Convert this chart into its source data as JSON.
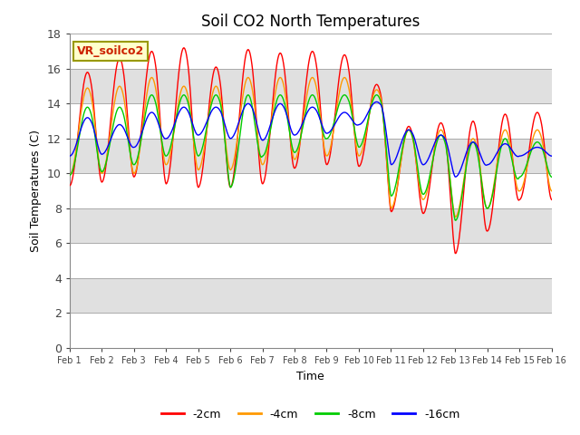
{
  "title": "Soil CO2 North Temperatures",
  "xlabel": "Time",
  "ylabel": "Soil Temperatures (C)",
  "ylim": [
    0,
    18
  ],
  "yticks": [
    0,
    2,
    4,
    6,
    8,
    10,
    12,
    14,
    16,
    18
  ],
  "annotation": "VR_soilco2",
  "series_order": [
    "-2cm",
    "-4cm",
    "-8cm",
    "-16cm"
  ],
  "series": {
    "-2cm": {
      "color": "#ff0000",
      "peaks": [
        15.8,
        16.6,
        17.0,
        17.2,
        16.1,
        17.1,
        16.9,
        17.0,
        16.8,
        15.1,
        12.7,
        12.9,
        13.0,
        13.4,
        13.5
      ],
      "troughs": [
        9.3,
        9.5,
        9.8,
        9.4,
        9.2,
        9.2,
        9.4,
        10.3,
        10.5,
        10.4,
        7.8,
        7.7,
        5.4,
        6.7,
        8.5
      ]
    },
    "-4cm": {
      "color": "#ff9900",
      "peaks": [
        14.9,
        15.0,
        15.5,
        15.0,
        15.0,
        15.5,
        15.5,
        15.5,
        15.5,
        14.8,
        12.5,
        12.5,
        12.0,
        12.5,
        12.5
      ],
      "troughs": [
        9.9,
        10.0,
        10.0,
        10.5,
        10.2,
        10.2,
        10.5,
        10.8,
        11.0,
        11.0,
        8.0,
        8.5,
        7.5,
        8.0,
        9.0
      ]
    },
    "-8cm": {
      "color": "#00cc00",
      "peaks": [
        13.8,
        13.8,
        14.5,
        14.5,
        14.5,
        14.5,
        14.5,
        14.5,
        14.5,
        14.5,
        12.5,
        12.2,
        11.8,
        12.0,
        11.8
      ],
      "troughs": [
        9.9,
        10.1,
        10.5,
        11.0,
        11.0,
        9.2,
        11.0,
        11.2,
        12.0,
        11.5,
        8.7,
        8.8,
        7.3,
        8.0,
        9.8
      ]
    },
    "-16cm": {
      "color": "#0000ff",
      "peaks": [
        13.2,
        12.8,
        13.5,
        13.8,
        13.8,
        14.0,
        14.0,
        13.8,
        13.5,
        14.1,
        12.5,
        12.2,
        11.8,
        11.7,
        11.5
      ],
      "troughs": [
        11.0,
        11.1,
        11.5,
        12.0,
        12.2,
        12.0,
        11.9,
        12.2,
        12.3,
        12.8,
        10.5,
        10.5,
        9.8,
        10.5,
        11.0
      ]
    }
  },
  "xtick_labels": [
    "Feb 1",
    "Feb 2",
    "Feb 3",
    "Feb 4",
    "Feb 5",
    "Feb 6",
    "Feb 7",
    "Feb 8",
    "Feb 9",
    "Feb 10",
    "Feb 11",
    "Feb 12",
    "Feb 13",
    "Feb 14",
    "Feb 15",
    "Feb 16"
  ],
  "n_days": 15,
  "bg_colors": [
    "#ffffff",
    "#e0e0e0"
  ],
  "legend_entries": [
    "-2cm",
    "-4cm",
    "-8cm",
    "-16cm"
  ],
  "legend_colors": [
    "#ff0000",
    "#ff9900",
    "#00cc00",
    "#0000ff"
  ]
}
